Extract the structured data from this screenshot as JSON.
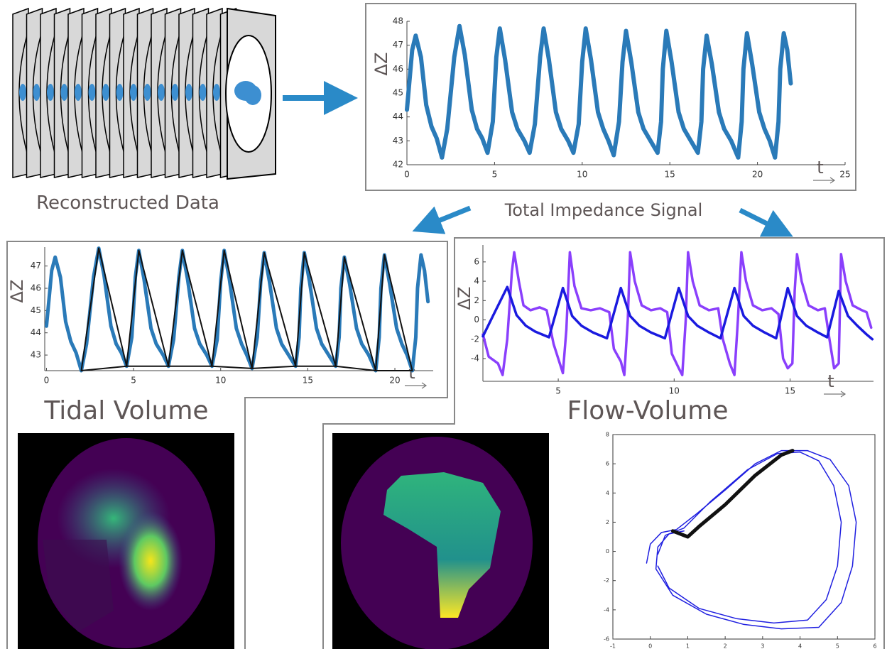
{
  "labels": {
    "reconstructed": "Reconstructed Data",
    "total": "Total Impedance Signal",
    "tidal": "Tidal Volume",
    "flow": "Flow-Volume"
  },
  "chart_data": [
    {
      "type": "line",
      "ylabel": "ΔZ",
      "xlabel": "t",
      "xlim": [
        0,
        25
      ],
      "xticks": [
        0,
        5,
        10,
        15,
        20,
        25
      ],
      "ylim": [
        42,
        48
      ],
      "yticks": [
        42,
        43,
        44,
        45,
        46,
        47,
        48
      ],
      "series": [
        {
          "color": "#2a7ab8",
          "width": 6,
          "x": [
            0,
            0.3,
            0.5,
            0.8,
            1.1,
            1.4,
            1.7,
            2.0,
            2.3,
            2.7,
            3.0,
            3.3,
            3.7,
            4.0,
            4.3,
            4.6,
            4.9,
            5.1,
            5.3,
            5.6,
            6.0,
            6.3,
            6.7,
            7.0,
            7.3,
            7.6,
            7.8,
            8.1,
            8.5,
            8.8,
            9.2,
            9.5,
            9.8,
            10.0,
            10.2,
            10.5,
            10.9,
            11.2,
            11.5,
            11.8,
            12.1,
            12.3,
            12.5,
            12.8,
            13.2,
            13.5,
            13.9,
            14.3,
            14.5,
            14.6,
            14.8,
            15.1,
            15.5,
            15.8,
            16.2,
            16.6,
            16.8,
            16.9,
            17.1,
            17.4,
            17.8,
            18.1,
            18.5,
            18.9,
            19.1,
            19.2,
            19.4,
            19.7,
            20.1,
            20.4,
            20.7,
            21.0,
            21.2,
            21.3,
            21.5,
            21.7,
            21.9
          ],
          "values": [
            44.3,
            46.8,
            47.4,
            46.5,
            44.5,
            43.6,
            43.1,
            42.3,
            43.5,
            46.5,
            47.8,
            46.6,
            44.3,
            43.5,
            43.1,
            42.5,
            43.8,
            46.5,
            47.7,
            46.4,
            44.2,
            43.5,
            43.0,
            42.5,
            43.7,
            46.5,
            47.7,
            46.4,
            44.2,
            43.5,
            43.0,
            42.5,
            43.7,
            46.3,
            47.7,
            46.4,
            44.2,
            43.5,
            43.0,
            42.4,
            43.8,
            46.3,
            47.6,
            46.3,
            44.2,
            43.5,
            43.0,
            42.5,
            43.8,
            46.0,
            47.6,
            46.3,
            44.2,
            43.5,
            43.0,
            42.5,
            43.8,
            46.0,
            47.4,
            46.2,
            44.2,
            43.5,
            43.0,
            42.3,
            43.8,
            46.0,
            47.5,
            46.2,
            44.2,
            43.5,
            43.0,
            42.3,
            43.8,
            46.0,
            47.5,
            46.8,
            45.4
          ]
        }
      ]
    },
    {
      "type": "line",
      "ylabel": "ΔZ",
      "xlabel": "t",
      "xlim": [
        -0.1,
        22.2
      ],
      "xticks": [
        0,
        5,
        10,
        15,
        20
      ],
      "ylim": [
        42.3,
        47.85
      ],
      "yticks": [
        43,
        44,
        45,
        46,
        47
      ],
      "series": [
        {
          "color": "#2a7ab8",
          "width": 5,
          "x": [
            0,
            0.3,
            0.5,
            0.8,
            1.1,
            1.4,
            1.7,
            2.0,
            2.3,
            2.7,
            3.0,
            3.3,
            3.7,
            4.0,
            4.3,
            4.6,
            4.9,
            5.1,
            5.3,
            5.6,
            6.0,
            6.3,
            6.7,
            7.0,
            7.3,
            7.6,
            7.8,
            8.1,
            8.5,
            8.8,
            9.2,
            9.5,
            9.8,
            10.0,
            10.2,
            10.5,
            10.9,
            11.2,
            11.5,
            11.8,
            12.1,
            12.3,
            12.5,
            12.8,
            13.2,
            13.5,
            13.9,
            14.3,
            14.5,
            14.6,
            14.8,
            15.1,
            15.5,
            15.8,
            16.2,
            16.6,
            16.8,
            16.9,
            17.1,
            17.4,
            17.8,
            18.1,
            18.5,
            18.9,
            19.1,
            19.2,
            19.4,
            19.7,
            20.1,
            20.4,
            20.7,
            21.0,
            21.2,
            21.3,
            21.5,
            21.7,
            21.9
          ],
          "values": [
            44.3,
            46.8,
            47.4,
            46.5,
            44.5,
            43.6,
            43.1,
            42.3,
            43.5,
            46.5,
            47.8,
            46.6,
            44.3,
            43.5,
            43.1,
            42.5,
            43.8,
            46.5,
            47.7,
            46.4,
            44.2,
            43.5,
            43.0,
            42.5,
            43.7,
            46.5,
            47.7,
            46.4,
            44.2,
            43.5,
            43.0,
            42.5,
            43.7,
            46.3,
            47.7,
            46.4,
            44.2,
            43.5,
            43.0,
            42.4,
            43.8,
            46.3,
            47.6,
            46.3,
            44.2,
            43.5,
            43.0,
            42.5,
            43.8,
            46.0,
            47.6,
            46.3,
            44.2,
            43.5,
            43.0,
            42.5,
            43.8,
            46.0,
            47.4,
            46.2,
            44.2,
            43.5,
            43.0,
            42.3,
            43.8,
            46.0,
            47.5,
            46.2,
            44.2,
            43.5,
            43.0,
            42.3,
            43.8,
            46.0,
            47.5,
            46.8,
            45.4
          ]
        },
        {
          "color": "#111111",
          "width": 2,
          "x": [
            2.0,
            3.0,
            4.6,
            5.3,
            7.0,
            7.8,
            9.5,
            10.2,
            11.8,
            12.5,
            14.3,
            14.8,
            16.6,
            17.1,
            18.9,
            19.4,
            21.0
          ],
          "values": [
            42.3,
            47.8,
            42.5,
            47.7,
            42.5,
            47.7,
            42.5,
            47.7,
            42.4,
            47.6,
            42.5,
            47.6,
            42.5,
            47.4,
            42.3,
            47.5,
            42.3
          ]
        },
        {
          "color": "#111111",
          "width": 2,
          "x": [
            2.0,
            4.6,
            7.0,
            9.5,
            11.8,
            14.3,
            16.6,
            18.9,
            21.0
          ],
          "values": [
            42.3,
            42.5,
            42.5,
            42.5,
            42.4,
            42.5,
            42.5,
            42.3,
            42.3
          ]
        }
      ]
    },
    {
      "type": "line",
      "ylabel": "ΔZ",
      "xlabel": "t",
      "xlim": [
        1.75,
        18.6
      ],
      "xticks": [
        5,
        10,
        15
      ],
      "ylim": [
        -6.35,
        7.75
      ],
      "yticks": [
        -4,
        -2,
        0,
        2,
        4,
        6
      ],
      "series": [
        {
          "color": "#8a3ffc",
          "width": 3.5,
          "x": [
            1.75,
            2.0,
            2.4,
            2.6,
            2.8,
            3.0,
            3.1,
            3.3,
            3.5,
            3.8,
            4.2,
            4.5,
            4.8,
            5.0,
            5.2,
            5.35,
            5.5,
            5.7,
            6.0,
            6.4,
            6.8,
            7.2,
            7.4,
            7.7,
            7.85,
            8.0,
            8.1,
            8.3,
            8.6,
            9.0,
            9.4,
            9.7,
            9.9,
            10.2,
            10.35,
            10.5,
            10.6,
            10.8,
            11.1,
            11.5,
            11.9,
            12.1,
            12.4,
            12.6,
            12.75,
            12.9,
            13.1,
            13.4,
            13.8,
            14.2,
            14.5,
            14.7,
            14.9,
            15.1,
            15.2,
            15.3,
            15.5,
            15.8,
            16.2,
            16.5,
            16.7,
            16.9,
            17.1,
            17.2,
            17.4,
            17.7,
            18.1,
            18.3,
            18.5
          ],
          "values": [
            -1.5,
            -3.8,
            -4.5,
            -5.7,
            -2.0,
            5.0,
            7.0,
            4.0,
            1.5,
            1.0,
            1.3,
            1.0,
            -2.5,
            -4.0,
            -5.5,
            -1.0,
            7.0,
            3.5,
            1.2,
            1.0,
            1.2,
            0.8,
            -3.0,
            -4.3,
            -5.7,
            0,
            7.0,
            4.0,
            1.5,
            1.0,
            1.2,
            0.8,
            -3.5,
            -5.0,
            -5.7,
            0,
            7.0,
            4.0,
            1.5,
            1.0,
            1.2,
            -2.0,
            -4.5,
            -5.7,
            0,
            7.0,
            4.0,
            1.5,
            1.0,
            1.2,
            0.6,
            -4.0,
            -5.0,
            -4.5,
            3.0,
            6.8,
            4.0,
            1.5,
            1.0,
            1.2,
            -2.0,
            -5.0,
            -4.5,
            6.8,
            4.0,
            1.5,
            1.0,
            0.8,
            -0.8
          ]
        },
        {
          "color": "#1a1adf",
          "width": 3.5,
          "x": [
            1.75,
            2.2,
            2.8,
            3.2,
            3.6,
            4.0,
            4.6,
            5.2,
            5.6,
            6.0,
            6.5,
            7.1,
            7.7,
            8.1,
            8.5,
            9.0,
            9.6,
            10.2,
            10.6,
            11.0,
            11.5,
            12.0,
            12.6,
            13.0,
            13.4,
            13.9,
            14.4,
            14.9,
            15.3,
            15.7,
            16.2,
            16.6,
            17.1,
            17.5,
            17.9,
            18.3,
            18.55
          ],
          "values": [
            -1.7,
            0.5,
            3.4,
            0.5,
            -0.6,
            -1.2,
            -1.8,
            3.3,
            0.4,
            -0.6,
            -1.3,
            -1.9,
            3.3,
            0.4,
            -0.6,
            -1.3,
            -1.9,
            3.3,
            0.4,
            -0.6,
            -1.3,
            -1.9,
            3.3,
            0.4,
            -0.6,
            -1.3,
            -1.9,
            3.3,
            0.4,
            -0.6,
            -1.3,
            -1.8,
            3.0,
            0.4,
            -0.6,
            -1.5,
            -2.0
          ]
        }
      ]
    },
    {
      "type": "line",
      "xlim": [
        -1,
        6
      ],
      "xticks": [
        -1,
        0,
        1,
        2,
        3,
        4,
        5,
        6
      ],
      "ylim": [
        -6,
        8
      ],
      "yticks": [
        -6,
        -4,
        -2,
        0,
        2,
        4,
        6,
        8
      ],
      "frame": true,
      "series": [
        {
          "color": "#1f1fe0",
          "width": 1.5,
          "x": [
            -0.1,
            0,
            0.3,
            0.7,
            1.2,
            2,
            2.8,
            3.5,
            4.2,
            4.8,
            5.3,
            5.5,
            5.4,
            5.1,
            4.5,
            3.5,
            2.5,
            1.5,
            0.6,
            0.15,
            0.2,
            0.5,
            0.9
          ],
          "values": [
            -0.8,
            0.5,
            1.3,
            1.5,
            2.5,
            4.2,
            6.0,
            6.9,
            6.9,
            6.3,
            4.5,
            2,
            -1,
            -3.5,
            -5.2,
            -5.3,
            -5,
            -4.3,
            -3,
            -1.2,
            0.3,
            1.2,
            1.4
          ]
        },
        {
          "color": "#1f1fe0",
          "width": 1.5,
          "x": [
            0.2,
            0.4,
            0.9,
            1.6,
            2.6,
            3.4,
            4.0,
            4.5,
            4.9,
            5.1,
            5.0,
            4.7,
            4.2,
            3.3,
            2.3,
            1.3,
            0.5,
            0.2
          ],
          "values": [
            -0.2,
            1.1,
            1.6,
            3.4,
            5.6,
            6.7,
            6.8,
            6.2,
            4.5,
            2,
            -1,
            -3.3,
            -4.7,
            -4.9,
            -4.6,
            -3.9,
            -2.5,
            -1
          ]
        },
        {
          "color": "#111111",
          "width": 5,
          "x": [
            0.6,
            1.0,
            1.3,
            2.0,
            2.8,
            3.5,
            3.8
          ],
          "values": [
            1.4,
            1.0,
            1.7,
            3.2,
            5.2,
            6.6,
            6.9
          ]
        }
      ]
    }
  ]
}
